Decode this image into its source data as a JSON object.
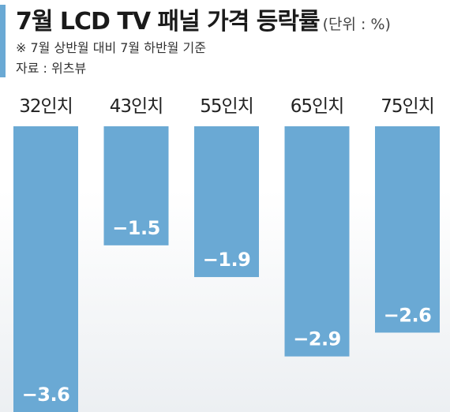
{
  "header": {
    "title": "7월 LCD TV 패널 가격 등락률",
    "unit": "(단위 : %)",
    "note": "※ 7월 상반월 대비 7월 하반월 기준",
    "source": "자료 : 위츠뷰"
  },
  "colors": {
    "bar": "#6aa9d4",
    "accent": "#6aa9d4",
    "value_label": "#ffffff"
  },
  "chart_data": {
    "type": "bar",
    "title": "7월 LCD TV 패널 가격 등락률",
    "xlabel": "",
    "ylabel": "",
    "categories": [
      "32인치",
      "43인치",
      "55인치",
      "65인치",
      "75인치"
    ],
    "values": [
      -3.6,
      -1.5,
      -1.9,
      -2.9,
      -2.6
    ],
    "value_labels": [
      "−3.6",
      "−1.5",
      "−1.9",
      "−2.9",
      "−2.6"
    ],
    "ylim": [
      -3.6,
      0
    ],
    "grid": false,
    "legend": "none"
  }
}
